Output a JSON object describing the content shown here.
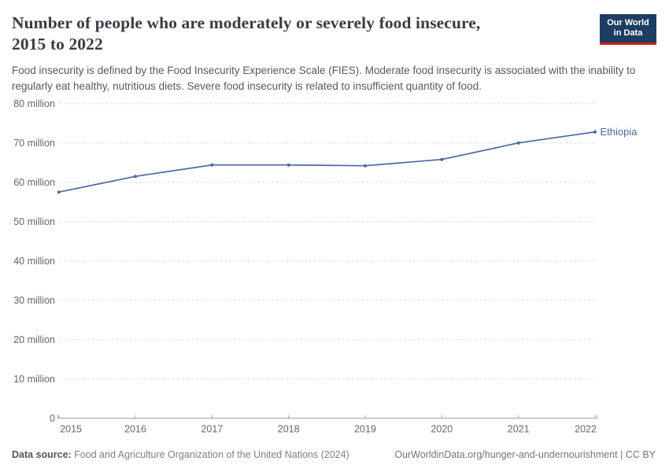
{
  "header": {
    "title_line1": "Number of people who are moderately or severely food insecure,",
    "title_line2": "2015 to 2022",
    "subtitle": "Food insecurity is defined by the Food Insecurity Experience Scale (FIES). Moderate food insecurity is associated with the inability to regularly eat healthy, nutritious diets. Severe food insecurity is related to insufficient quantity of food.",
    "logo": {
      "line1": "Our World",
      "line2": "in Data",
      "bg_color": "#1d3d63",
      "accent_color": "#c8261d"
    }
  },
  "chart_data": {
    "type": "line",
    "title": "Number of people who are moderately or severely food insecure, 2015 to 2022",
    "x": [
      2015,
      2016,
      2017,
      2018,
      2019,
      2020,
      2021,
      2022
    ],
    "xticks": [
      {
        "value": 2015,
        "label": "2015"
      },
      {
        "value": 2016,
        "label": "2016"
      },
      {
        "value": 2017,
        "label": "2017"
      },
      {
        "value": 2018,
        "label": "2018"
      },
      {
        "value": 2019,
        "label": "2019"
      },
      {
        "value": 2020,
        "label": "2020"
      },
      {
        "value": 2021,
        "label": "2021"
      },
      {
        "value": 2022,
        "label": "2022"
      }
    ],
    "yticks": [
      {
        "value": 0,
        "label": "0"
      },
      {
        "value": 10,
        "label": "10 million"
      },
      {
        "value": 20,
        "label": "20 million"
      },
      {
        "value": 30,
        "label": "30 million"
      },
      {
        "value": 40,
        "label": "40 million"
      },
      {
        "value": 50,
        "label": "50 million"
      },
      {
        "value": 60,
        "label": "60 million"
      },
      {
        "value": 70,
        "label": "70 million"
      },
      {
        "value": 80,
        "label": "80 million"
      }
    ],
    "ylim": [
      0,
      80
    ],
    "unit": "million people",
    "grid": "horizontal-dashed",
    "legend_position": "end-of-line-label",
    "series": [
      {
        "name": "Ethiopia",
        "color": "#4a67a0",
        "values": [
          57.5,
          61.5,
          64.4,
          64.4,
          64.2,
          65.8,
          70.0,
          72.8
        ]
      }
    ],
    "colors": {
      "gridline": "#dcdcdc",
      "axis_line": "#a6a6a6",
      "tick_label": "#666666"
    }
  },
  "footer": {
    "datasource_label": "Data source:",
    "datasource_text": " Food and Agriculture Organization of the United Nations (2024)",
    "credit": "OurWorldinData.org/hunger-and-undernourishment | CC BY"
  }
}
